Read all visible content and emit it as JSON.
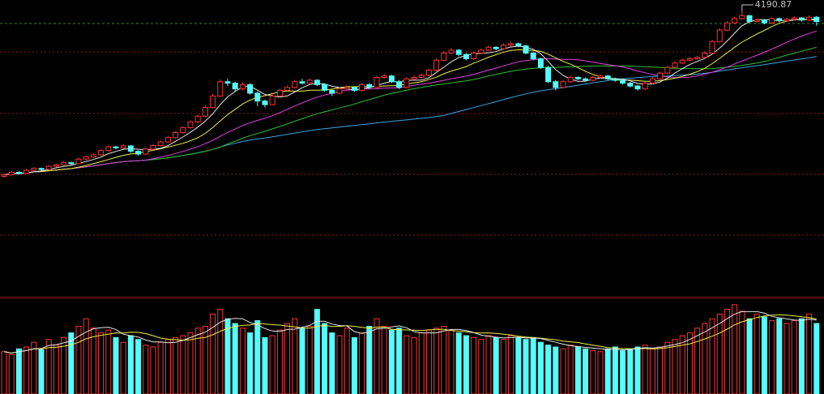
{
  "chart_data": {
    "type": "candlestick",
    "up_color": "#ff3232",
    "down_color": "#54fcfc",
    "ylim": [
      2200,
      4270
    ],
    "volume_ylim": [
      0,
      100
    ],
    "open": [
      3040,
      3050,
      3068,
      3060,
      3082,
      3095,
      3088,
      3110,
      3120,
      3135,
      3128,
      3160,
      3175,
      3190,
      3220,
      3245,
      3238,
      3252,
      3215,
      3195,
      3230,
      3255,
      3280,
      3310,
      3345,
      3380,
      3420,
      3460,
      3520,
      3600,
      3700,
      3690,
      3650,
      3680,
      3620,
      3565,
      3540,
      3600,
      3640,
      3660,
      3700,
      3690,
      3710,
      3680,
      3640,
      3620,
      3650,
      3660,
      3640,
      3680,
      3660,
      3730,
      3740,
      3700,
      3660,
      3720,
      3730,
      3745,
      3780,
      3850,
      3900,
      3920,
      3890,
      3860,
      3900,
      3920,
      3940,
      3930,
      3955,
      3965,
      3950,
      3900,
      3860,
      3800,
      3700,
      3660,
      3700,
      3730,
      3720,
      3710,
      3730,
      3740,
      3720,
      3710,
      3690,
      3670,
      3650,
      3690,
      3720,
      3760,
      3800,
      3830,
      3850,
      3860,
      3870,
      3900,
      3980,
      4060,
      4110,
      4140,
      4160,
      4120,
      4130,
      4110,
      4140,
      4125,
      4135,
      4145,
      4130,
      4150
    ],
    "high": [
      3062,
      3078,
      3075,
      3092,
      3105,
      3100,
      3120,
      3128,
      3145,
      3142,
      3170,
      3185,
      3200,
      3230,
      3255,
      3252,
      3265,
      3258,
      3222,
      3240,
      3265,
      3290,
      3320,
      3355,
      3390,
      3430,
      3470,
      3535,
      3615,
      3715,
      3720,
      3700,
      3695,
      3690,
      3632,
      3575,
      3612,
      3652,
      3672,
      3712,
      3720,
      3722,
      3718,
      3690,
      3650,
      3662,
      3672,
      3668,
      3692,
      3688,
      3742,
      3755,
      3748,
      3712,
      3732,
      3742,
      3758,
      3792,
      3862,
      3912,
      3935,
      3928,
      3900,
      3912,
      3932,
      3952,
      3948,
      3968,
      3978,
      3972,
      3958,
      3910,
      3868,
      3810,
      3712,
      3712,
      3742,
      3738,
      3728,
      3742,
      3752,
      3748,
      3728,
      3718,
      3698,
      3678,
      3702,
      3732,
      3772,
      3812,
      3842,
      3862,
      3872,
      3882,
      3912,
      3992,
      4072,
      4122,
      4152,
      4190.87,
      4168,
      4142,
      4138,
      4152,
      4148,
      4147,
      4157,
      4152,
      4162,
      4158
    ],
    "low": [
      3030,
      3045,
      3050,
      3055,
      3075,
      3080,
      3085,
      3102,
      3112,
      3118,
      3125,
      3150,
      3168,
      3185,
      3212,
      3228,
      3230,
      3205,
      3185,
      3190,
      3222,
      3248,
      3272,
      3302,
      3338,
      3372,
      3412,
      3452,
      3515,
      3595,
      3670,
      3630,
      3640,
      3610,
      3530,
      3520,
      3535,
      3592,
      3630,
      3652,
      3680,
      3682,
      3670,
      3630,
      3600,
      3612,
      3640,
      3628,
      3632,
      3648,
      3652,
      3720,
      3690,
      3648,
      3652,
      3710,
      3722,
      3738,
      3772,
      3842,
      3892,
      3878,
      3850,
      3852,
      3892,
      3912,
      3920,
      3922,
      3946,
      3940,
      3890,
      3850,
      3790,
      3690,
      3640,
      3652,
      3692,
      3710,
      3700,
      3702,
      3722,
      3712,
      3700,
      3680,
      3660,
      3638,
      3642,
      3682,
      3712,
      3752,
      3792,
      3822,
      3842,
      3852,
      3862,
      3892,
      3972,
      4052,
      4102,
      4132,
      4110,
      4112,
      4100,
      4102,
      4115,
      4118,
      4128,
      4120,
      4122,
      4090
    ],
    "close": [
      3050,
      3068,
      3060,
      3082,
      3095,
      3088,
      3110,
      3120,
      3135,
      3128,
      3160,
      3175,
      3190,
      3220,
      3245,
      3238,
      3252,
      3215,
      3195,
      3230,
      3255,
      3280,
      3310,
      3345,
      3380,
      3420,
      3460,
      3520,
      3600,
      3700,
      3690,
      3650,
      3680,
      3620,
      3565,
      3540,
      3600,
      3640,
      3660,
      3700,
      3690,
      3710,
      3680,
      3640,
      3620,
      3650,
      3660,
      3640,
      3680,
      3660,
      3730,
      3740,
      3700,
      3660,
      3720,
      3730,
      3745,
      3780,
      3850,
      3900,
      3920,
      3890,
      3860,
      3900,
      3920,
      3940,
      3930,
      3955,
      3965,
      3950,
      3900,
      3860,
      3800,
      3700,
      3660,
      3700,
      3730,
      3720,
      3710,
      3730,
      3740,
      3720,
      3710,
      3690,
      3670,
      3650,
      3690,
      3720,
      3760,
      3800,
      3830,
      3850,
      3860,
      3870,
      3900,
      3980,
      4060,
      4110,
      4140,
      4160,
      4120,
      4130,
      4110,
      4140,
      4125,
      4135,
      4145,
      4130,
      4150,
      4120
    ],
    "volume": [
      45,
      42,
      48,
      50,
      55,
      47,
      58,
      52,
      60,
      65,
      72,
      80,
      70,
      65,
      68,
      60,
      55,
      62,
      58,
      52,
      50,
      55,
      58,
      60,
      62,
      65,
      70,
      72,
      85,
      90,
      80,
      75,
      70,
      65,
      78,
      60,
      62,
      68,
      75,
      80,
      70,
      72,
      90,
      75,
      65,
      62,
      70,
      60,
      65,
      72,
      80,
      72,
      68,
      70,
      62,
      60,
      65,
      68,
      70,
      72,
      68,
      65,
      62,
      60,
      58,
      62,
      60,
      58,
      62,
      60,
      58,
      60,
      55,
      52,
      50,
      48,
      52,
      50,
      48,
      46,
      45,
      48,
      50,
      46,
      48,
      50,
      52,
      48,
      50,
      55,
      58,
      62,
      65,
      70,
      75,
      80,
      85,
      90,
      95,
      88,
      80,
      85,
      82,
      78,
      80,
      75,
      78,
      80,
      85,
      75
    ]
  }
}
